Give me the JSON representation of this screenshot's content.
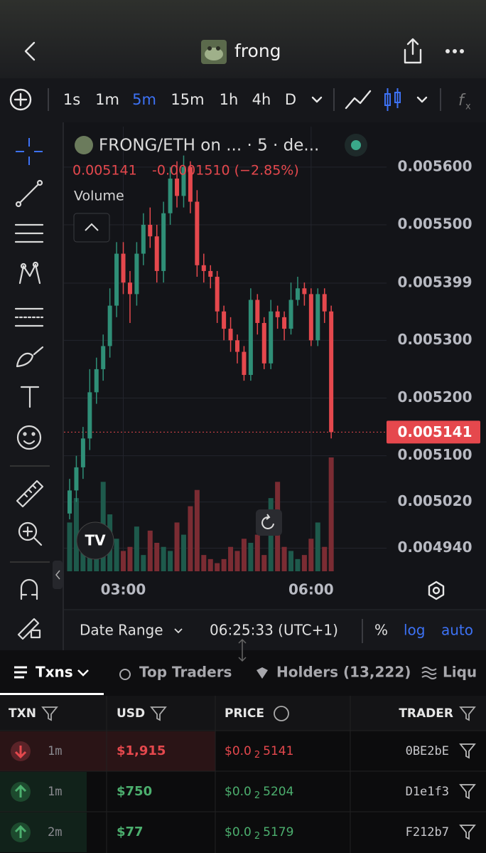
{
  "header": {
    "title": "frong"
  },
  "toolbar": {
    "intervals": [
      "1s",
      "1m",
      "5m",
      "15m",
      "1h",
      "4h",
      "D"
    ]
  },
  "chart_data": {
    "type": "candlestick",
    "title": "FRONG/ETH on ... · 5 · de...",
    "legend_values": [
      "0.005141",
      "-0.0001510 (−2.85%)"
    ],
    "volume_label": "Volume",
    "categories": [
      null,
      null,
      null,
      null,
      null,
      null,
      null,
      null,
      "03:00",
      null,
      null,
      null,
      null,
      null,
      null,
      null,
      null,
      null,
      null,
      null,
      null,
      null,
      null,
      null,
      null,
      null,
      null,
      null,
      null,
      null,
      null,
      null,
      null,
      null,
      null,
      null,
      "06:00",
      null,
      null,
      null
    ],
    "open": [
      0.005,
      0.00504,
      0.00508,
      0.00513,
      0.00521,
      0.00525,
      0.00529,
      0.00536,
      0.00545,
      0.0054,
      0.00538,
      0.00545,
      0.0055,
      0.00548,
      0.00542,
      0.00552,
      0.00558,
      0.00555,
      0.0056,
      0.00554,
      0.00543,
      0.00542,
      0.00541,
      0.00535,
      0.00532,
      0.0053,
      0.00528,
      0.00524,
      0.00537,
      0.00533,
      0.00526,
      0.00535,
      0.00534,
      0.00532,
      0.00537,
      0.00539,
      0.00538,
      0.0053,
      0.00538,
      0.00535
    ],
    "high": [
      0.00506,
      0.0051,
      0.00515,
      0.00525,
      0.00527,
      0.00531,
      0.00539,
      0.00547,
      0.00547,
      0.00542,
      0.00547,
      0.00552,
      0.00553,
      0.0055,
      0.00554,
      0.0056,
      0.00561,
      0.00562,
      0.00561,
      0.00556,
      0.00545,
      0.00543,
      0.00542,
      0.00536,
      0.00534,
      0.00531,
      0.00529,
      0.00539,
      0.00538,
      0.00534,
      0.00537,
      0.00536,
      0.00535,
      0.0054,
      0.00541,
      0.0054,
      0.00539,
      0.00539,
      0.00539,
      0.00536
    ],
    "low": [
      0.00499,
      0.00502,
      0.00506,
      0.00511,
      0.00519,
      0.00523,
      0.00527,
      0.00534,
      0.00538,
      0.00533,
      0.00536,
      0.00543,
      0.00546,
      0.0054,
      0.0054,
      0.0055,
      0.00553,
      0.00553,
      0.00552,
      0.00541,
      0.0054,
      0.00539,
      0.00533,
      0.0053,
      0.00528,
      0.00526,
      0.00523,
      0.00523,
      0.00531,
      0.00525,
      0.00525,
      0.00532,
      0.0053,
      0.00531,
      0.00536,
      0.00536,
      0.00529,
      0.00529,
      0.00533,
      0.00513
    ],
    "close": [
      0.00504,
      0.00508,
      0.00513,
      0.00521,
      0.00525,
      0.00529,
      0.00536,
      0.00545,
      0.0054,
      0.00538,
      0.00545,
      0.0055,
      0.00548,
      0.00542,
      0.00552,
      0.00558,
      0.00555,
      0.0056,
      0.00554,
      0.00543,
      0.00542,
      0.00541,
      0.00535,
      0.00532,
      0.0053,
      0.00528,
      0.00524,
      0.00537,
      0.00533,
      0.00526,
      0.00535,
      0.00534,
      0.00532,
      0.00537,
      0.00539,
      0.00538,
      0.0053,
      0.00538,
      0.00535,
      0.005141
    ],
    "volume": [
      60,
      90,
      40,
      30,
      20,
      110,
      70,
      40,
      25,
      30,
      55,
      20,
      50,
      35,
      30,
      25,
      60,
      45,
      80,
      100,
      20,
      15,
      10,
      15,
      30,
      25,
      40,
      35,
      45,
      20,
      90,
      110,
      30,
      25,
      15,
      20,
      40,
      60,
      30,
      140
    ],
    "up_color": "#2f8f77",
    "down_color": "#e5484d",
    "volume_up_color": "#1e5a4c",
    "volume_down_color": "#7b2c33",
    "ylim": [
      0.0049,
      0.00567
    ],
    "yticks": [
      {
        "value": 0.0056,
        "label": "0.005600"
      },
      {
        "value": 0.0055,
        "label": "0.005500"
      },
      0.005399,
      {
        "value": 0.0053,
        "label": "0.005300"
      },
      {
        "value": 0.0052,
        "label": "0.005200"
      },
      {
        "value": 0.0051,
        "label": "0.005100"
      },
      {
        "value": 0.00502,
        "label": "0.005020"
      },
      {
        "value": 0.00494,
        "label": "0.004940"
      }
    ],
    "grid": true
  },
  "chart_footer": {
    "date_range": "Date Range",
    "time": "06:25:33 (UTC+1)",
    "percent": "%",
    "log": "log",
    "auto": "auto"
  },
  "tabs": [
    "Txns",
    "Top Traders",
    "Holders (13,222)",
    "Liqu"
  ],
  "table": {
    "columns": [
      "TXN",
      "USD",
      "PRICE",
      "TRADER"
    ],
    "rows": [
      {
        "side": "sell",
        "age": "1m",
        "usd": "$1,915",
        "price": {
          "prefix": "$0.0",
          "zeros": "2",
          "digits": "5141"
        },
        "trader": "0BE2bE"
      },
      {
        "side": "buy",
        "age": "1m",
        "usd": "$750",
        "price": {
          "prefix": "$0.0",
          "zeros": "2",
          "digits": "5204"
        },
        "trader": "D1e1f3"
      },
      {
        "side": "buy",
        "age": "2m",
        "usd": "$77",
        "price": {
          "prefix": "$0.0",
          "zeros": "2",
          "digits": "5179"
        },
        "trader": "F212b7"
      }
    ]
  }
}
